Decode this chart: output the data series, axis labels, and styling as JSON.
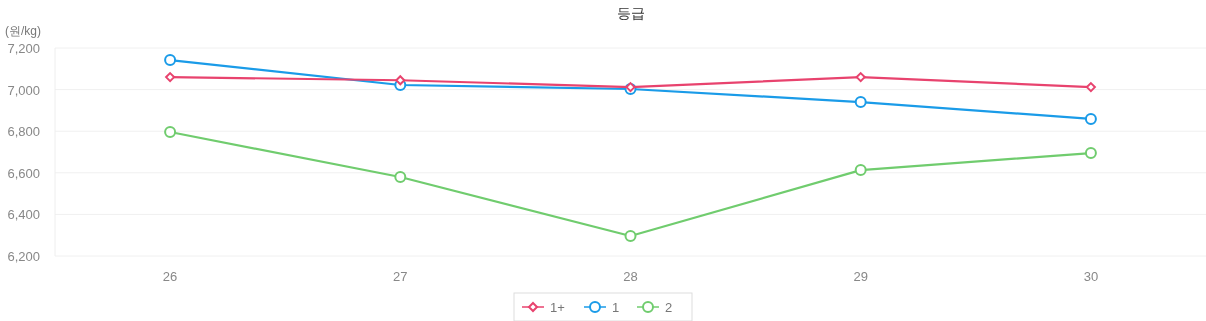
{
  "chart_data": {
    "type": "line",
    "title": "등급",
    "ylabel": "(원/kg)",
    "categories": [
      "26",
      "27",
      "28",
      "29",
      "30"
    ],
    "series": [
      {
        "name": "1+",
        "color": "#e8436e",
        "marker": "diamond",
        "values": [
          7060,
          7045,
          7012,
          7060,
          7012
        ]
      },
      {
        "name": "1",
        "color": "#1a9be8",
        "marker": "circle",
        "values": [
          7142,
          7022,
          7003,
          6940,
          6859
        ]
      },
      {
        "name": "2",
        "color": "#70cc6e",
        "marker": "circle",
        "values": [
          6796,
          6580,
          6296,
          6613,
          6695
        ]
      }
    ],
    "ylim": [
      6200,
      7200
    ],
    "yticks": [
      {
        "value": 6200,
        "label": "6,200"
      },
      {
        "value": 6400,
        "label": "6,400"
      },
      {
        "value": 6600,
        "label": "6,600"
      },
      {
        "value": 6800,
        "label": "6,800"
      },
      {
        "value": 7000,
        "label": "7,000"
      },
      {
        "value": 7200,
        "label": "7,200"
      }
    ],
    "grid": "y",
    "legend": "bottom",
    "line_style": "solid"
  }
}
